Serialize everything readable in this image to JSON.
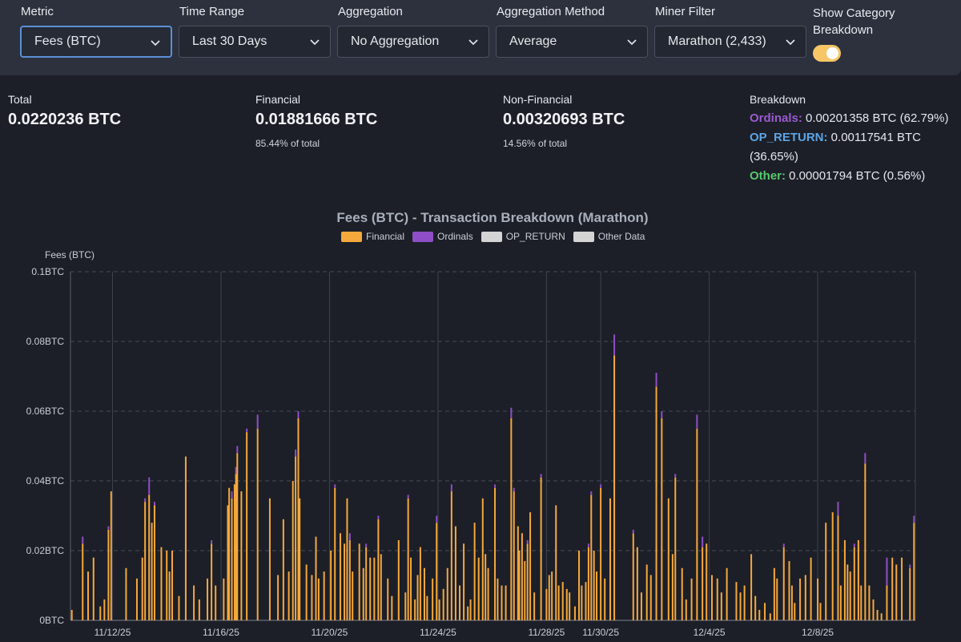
{
  "filters": {
    "metric": {
      "label": "Metric",
      "value": "Fees (BTC)"
    },
    "time_range": {
      "label": "Time Range",
      "value": "Last 30 Days"
    },
    "aggregation": {
      "label": "Aggregation",
      "value": "No Aggregation"
    },
    "aggregation_method": {
      "label": "Aggregation Method",
      "value": "Average"
    },
    "miner_filter": {
      "label": "Miner Filter",
      "value": "Marathon (2,433)"
    },
    "show_category": {
      "label": "Show Category Breakdown",
      "enabled": true
    }
  },
  "stats": {
    "total": {
      "label": "Total",
      "value": "0.0220236 BTC"
    },
    "financial": {
      "label": "Financial",
      "value": "0.01881666 BTC",
      "sub": "85.44% of total"
    },
    "non_financial": {
      "label": "Non-Financial",
      "value": "0.00320693 BTC",
      "sub": "14.56% of total"
    },
    "breakdown": {
      "label": "Breakdown",
      "ordinals_label": "Ordinals:",
      "ordinals_value": " 0.00201358 BTC (62.79%)",
      "opreturn_label": "OP_RETURN:",
      "opreturn_value": " 0.00117541 BTC",
      "opreturn_pct": "(36.65%)",
      "other_label": "Other:",
      "other_value": " 0.00001794 BTC (0.56%)"
    }
  },
  "chart_data": {
    "type": "bar",
    "stacked": true,
    "title": "Fees (BTC) - Transaction Breakdown (Marathon)",
    "ylabel": "Fees (BTC)",
    "ylim": [
      0,
      0.1
    ],
    "y_ticks": [
      "0BTC",
      "0.02BTC",
      "0.04BTC",
      "0.06BTC",
      "0.08BTC",
      "0.1BTC"
    ],
    "x_ticks": [
      "11/12/25",
      "11/16/25",
      "11/20/25",
      "11/24/25",
      "11/28/25",
      "11/30/25",
      "12/4/25",
      "12/8/25"
    ],
    "x_tick_days": [
      1,
      5,
      9,
      13,
      17,
      19,
      23,
      27
    ],
    "x_range_days": [
      -0.55,
      30.6
    ],
    "legend": [
      {
        "name": "Financial",
        "color": "#f5a83c"
      },
      {
        "name": "Ordinals",
        "color": "#8e4fc6"
      },
      {
        "name": "OP_RETURN",
        "color": "#d4d4d4"
      },
      {
        "name": "Other Data",
        "color": "#d4d4d4"
      }
    ],
    "bars_note": "day offset from 11/11/25, financial BTC, ordinals BTC",
    "bars": [
      [
        -0.5,
        0.003,
        0
      ],
      [
        -0.1,
        0.022,
        0.002
      ],
      [
        0.1,
        0.014,
        0
      ],
      [
        0.3,
        0.018,
        0
      ],
      [
        0.55,
        0.004,
        0
      ],
      [
        0.7,
        0.006,
        0
      ],
      [
        0.85,
        0.026,
        0.001
      ],
      [
        0.95,
        0.037,
        0
      ],
      [
        1.5,
        0.015,
        0
      ],
      [
        1.9,
        0.012,
        0
      ],
      [
        2.1,
        0.018,
        0
      ],
      [
        2.2,
        0.034,
        0.001
      ],
      [
        2.35,
        0.036,
        0.005
      ],
      [
        2.45,
        0.028,
        0
      ],
      [
        2.55,
        0.033,
        0.001
      ],
      [
        2.8,
        0.021,
        0
      ],
      [
        3.0,
        0.02,
        0
      ],
      [
        3.1,
        0.014,
        0
      ],
      [
        3.2,
        0.02,
        0
      ],
      [
        3.45,
        0.007,
        0
      ],
      [
        3.7,
        0.047,
        0
      ],
      [
        4.0,
        0.01,
        0
      ],
      [
        4.2,
        0.006,
        0
      ],
      [
        4.5,
        0.012,
        0
      ],
      [
        4.65,
        0.022,
        0.001
      ],
      [
        4.8,
        0.01,
        0
      ],
      [
        5.1,
        0.012,
        0
      ],
      [
        5.25,
        0.033,
        0
      ],
      [
        5.3,
        0.038,
        0
      ],
      [
        5.4,
        0.035,
        0.002
      ],
      [
        5.5,
        0.039,
        0
      ],
      [
        5.55,
        0.042,
        0.002
      ],
      [
        5.6,
        0.048,
        0.002
      ],
      [
        5.75,
        0.037,
        0
      ],
      [
        5.95,
        0.054,
        0.001
      ],
      [
        6.35,
        0.055,
        0.004
      ],
      [
        6.8,
        0.035,
        0
      ],
      [
        7.1,
        0.013,
        0
      ],
      [
        7.3,
        0.029,
        0
      ],
      [
        7.5,
        0.014,
        0
      ],
      [
        7.65,
        0.04,
        0
      ],
      [
        7.75,
        0.047,
        0.002
      ],
      [
        7.85,
        0.058,
        0.002
      ],
      [
        7.9,
        0.035,
        0
      ],
      [
        8.15,
        0.016,
        0
      ],
      [
        8.35,
        0.013,
        0
      ],
      [
        8.5,
        0.024,
        0
      ],
      [
        8.6,
        0.012,
        0
      ],
      [
        8.8,
        0.014,
        0
      ],
      [
        9.05,
        0.02,
        0
      ],
      [
        9.2,
        0.038,
        0.001
      ],
      [
        9.4,
        0.025,
        0
      ],
      [
        9.55,
        0.022,
        0
      ],
      [
        9.65,
        0.035,
        0
      ],
      [
        9.75,
        0.023,
        0.002
      ],
      [
        9.85,
        0.014,
        0
      ],
      [
        10.1,
        0.022,
        0
      ],
      [
        10.25,
        0.015,
        0
      ],
      [
        10.35,
        0.021,
        0.001
      ],
      [
        10.5,
        0.018,
        0
      ],
      [
        10.65,
        0.018,
        0
      ],
      [
        10.8,
        0.029,
        0.001
      ],
      [
        10.9,
        0.019,
        0
      ],
      [
        11.15,
        0.012,
        0
      ],
      [
        11.3,
        0.007,
        0
      ],
      [
        11.55,
        0.023,
        0
      ],
      [
        11.8,
        0.008,
        0
      ],
      [
        11.9,
        0.035,
        0.001
      ],
      [
        12.0,
        0.018,
        0
      ],
      [
        12.15,
        0.006,
        0
      ],
      [
        12.25,
        0.013,
        0
      ],
      [
        12.35,
        0.021,
        0
      ],
      [
        12.5,
        0.015,
        0
      ],
      [
        12.6,
        0.007,
        0
      ],
      [
        12.8,
        0.012,
        0
      ],
      [
        12.95,
        0.028,
        0.002
      ],
      [
        13.05,
        0.006,
        0
      ],
      [
        13.2,
        0.009,
        0
      ],
      [
        13.35,
        0.015,
        0
      ],
      [
        13.5,
        0.037,
        0.002
      ],
      [
        13.65,
        0.027,
        0
      ],
      [
        13.8,
        0.01,
        0
      ],
      [
        13.95,
        0.022,
        0
      ],
      [
        14.1,
        0.004,
        0
      ],
      [
        14.2,
        0.006,
        0
      ],
      [
        14.35,
        0.028,
        0
      ],
      [
        14.5,
        0.018,
        0
      ],
      [
        14.65,
        0.035,
        0
      ],
      [
        14.75,
        0.019,
        0
      ],
      [
        14.85,
        0.015,
        0
      ],
      [
        15.1,
        0.038,
        0.001
      ],
      [
        15.2,
        0.012,
        0
      ],
      [
        15.35,
        0.01,
        0
      ],
      [
        15.5,
        0.01,
        0
      ],
      [
        15.7,
        0.058,
        0.003
      ],
      [
        15.8,
        0.037,
        0.001
      ],
      [
        15.95,
        0.027,
        0
      ],
      [
        16.0,
        0.02,
        0
      ],
      [
        16.1,
        0.025,
        0
      ],
      [
        16.2,
        0.017,
        0
      ],
      [
        16.3,
        0.022,
        0.001
      ],
      [
        16.4,
        0.031,
        0
      ],
      [
        16.55,
        0.008,
        0
      ],
      [
        16.8,
        0.041,
        0.001
      ],
      [
        17.0,
        0.009,
        0
      ],
      [
        17.1,
        0.013,
        0
      ],
      [
        17.2,
        0.014,
        0
      ],
      [
        17.35,
        0.033,
        0
      ],
      [
        17.45,
        0.01,
        0
      ],
      [
        17.6,
        0.011,
        0
      ],
      [
        17.75,
        0.009,
        0
      ],
      [
        17.85,
        0.008,
        0
      ],
      [
        18.05,
        0.004,
        0
      ],
      [
        18.2,
        0.02,
        0
      ],
      [
        18.3,
        0.01,
        0
      ],
      [
        18.45,
        0.011,
        0
      ],
      [
        18.55,
        0.021,
        0.001
      ],
      [
        18.65,
        0.036,
        0.001
      ],
      [
        18.75,
        0.02,
        0
      ],
      [
        18.85,
        0.014,
        0
      ],
      [
        19.0,
        0.038,
        0.001
      ],
      [
        19.15,
        0.012,
        0
      ],
      [
        19.35,
        0.035,
        0
      ],
      [
        19.5,
        0.076,
        0.006
      ],
      [
        20.2,
        0.025,
        0.001
      ],
      [
        20.35,
        0.021,
        0
      ],
      [
        20.5,
        0.008,
        0
      ],
      [
        20.7,
        0.016,
        0
      ],
      [
        20.85,
        0.013,
        0
      ],
      [
        21.05,
        0.067,
        0.004
      ],
      [
        21.25,
        0.058,
        0.002
      ],
      [
        21.5,
        0.035,
        0
      ],
      [
        21.65,
        0.019,
        0
      ],
      [
        21.75,
        0.041,
        0.001
      ],
      [
        22.0,
        0.015,
        0
      ],
      [
        22.15,
        0.006,
        0
      ],
      [
        22.35,
        0.012,
        0
      ],
      [
        22.55,
        0.055,
        0.004
      ],
      [
        22.75,
        0.021,
        0.003
      ],
      [
        22.9,
        0.022,
        0
      ],
      [
        23.1,
        0.013,
        0
      ],
      [
        23.3,
        0.012,
        0
      ],
      [
        23.45,
        0.008,
        0
      ],
      [
        23.65,
        0.015,
        0
      ],
      [
        24.0,
        0.011,
        0
      ],
      [
        24.15,
        0.008,
        0
      ],
      [
        24.3,
        0.01,
        0
      ],
      [
        24.55,
        0.019,
        0
      ],
      [
        24.7,
        0.007,
        0
      ],
      [
        24.85,
        0.003,
        0
      ],
      [
        25.05,
        0.005,
        0
      ],
      [
        25.25,
        0.002,
        0
      ],
      [
        25.4,
        0.015,
        0
      ],
      [
        25.5,
        0.012,
        0
      ],
      [
        25.75,
        0.021,
        0.001
      ],
      [
        25.95,
        0.017,
        0
      ],
      [
        26.05,
        0.01,
        0
      ],
      [
        26.15,
        0.005,
        0
      ],
      [
        26.35,
        0.012,
        0
      ],
      [
        26.55,
        0.013,
        0
      ],
      [
        26.75,
        0.018,
        0
      ],
      [
        27.0,
        0.012,
        0
      ],
      [
        27.1,
        0.005,
        0
      ],
      [
        27.3,
        0.028,
        0
      ],
      [
        27.55,
        0.031,
        0
      ],
      [
        27.75,
        0.03,
        0.004
      ],
      [
        27.85,
        0.01,
        0
      ],
      [
        28.0,
        0.023,
        0
      ],
      [
        28.1,
        0.016,
        0
      ],
      [
        28.2,
        0.014,
        0
      ],
      [
        28.35,
        0.021,
        0.001
      ],
      [
        28.5,
        0.023,
        0
      ],
      [
        28.6,
        0.01,
        0
      ],
      [
        28.75,
        0.045,
        0.003
      ],
      [
        28.9,
        0.01,
        0
      ],
      [
        29.05,
        0.006,
        0
      ],
      [
        29.2,
        0.003,
        0
      ],
      [
        29.35,
        0.002,
        0
      ],
      [
        29.55,
        0.01,
        0.008
      ],
      [
        29.75,
        0.018,
        0
      ],
      [
        29.9,
        0.016,
        0
      ],
      [
        30.1,
        0.018,
        0
      ],
      [
        30.4,
        0.015,
        0.001
      ],
      [
        30.55,
        0.028,
        0.002
      ]
    ]
  }
}
